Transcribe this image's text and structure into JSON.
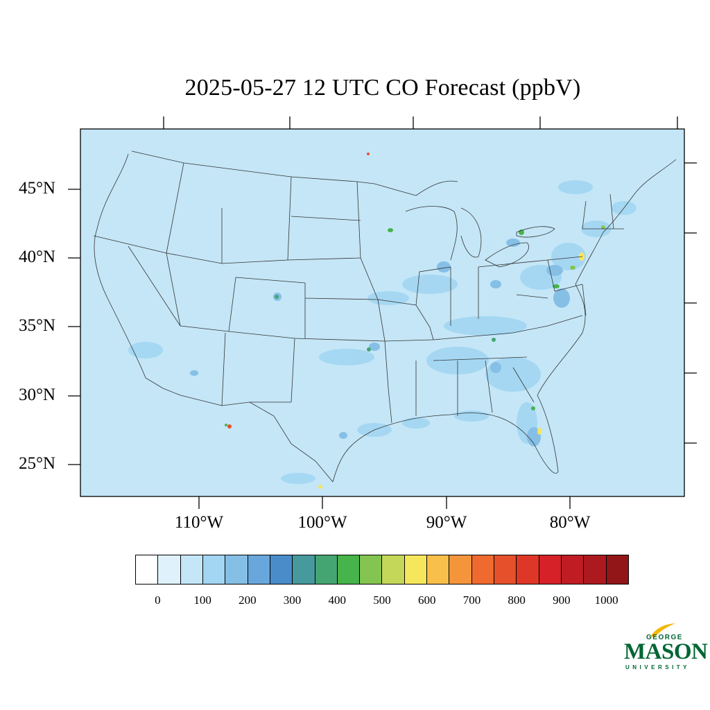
{
  "title": "2025-05-27 12 UTC CO Forecast (ppbV)",
  "map": {
    "background_color": "#c4e6f7",
    "lat_labels": [
      "45°N",
      "40°N",
      "35°N",
      "30°N",
      "25°N"
    ],
    "lon_labels": [
      "110°W",
      "100°W",
      "90°W",
      "80°W"
    ]
  },
  "colorbar": {
    "colors": [
      "#ffffff",
      "#dff1fb",
      "#c4e6f7",
      "#a2d6f2",
      "#86bfe6",
      "#68a7db",
      "#4a8bca",
      "#46999c",
      "#45a572",
      "#46b44a",
      "#84c450",
      "#c5d759",
      "#f6e65c",
      "#f8bf4b",
      "#f4953c",
      "#ef6a2f",
      "#e6502a",
      "#df3727",
      "#d62128",
      "#c01c24",
      "#ac1a1f",
      "#921617"
    ],
    "tick_labels": [
      "0",
      "100",
      "200",
      "300",
      "400",
      "500",
      "600",
      "700",
      "800",
      "900",
      "1000"
    ]
  },
  "logo": {
    "line1": "GEORGE",
    "line2": "MASON",
    "line3": "UNIVERSITY"
  }
}
